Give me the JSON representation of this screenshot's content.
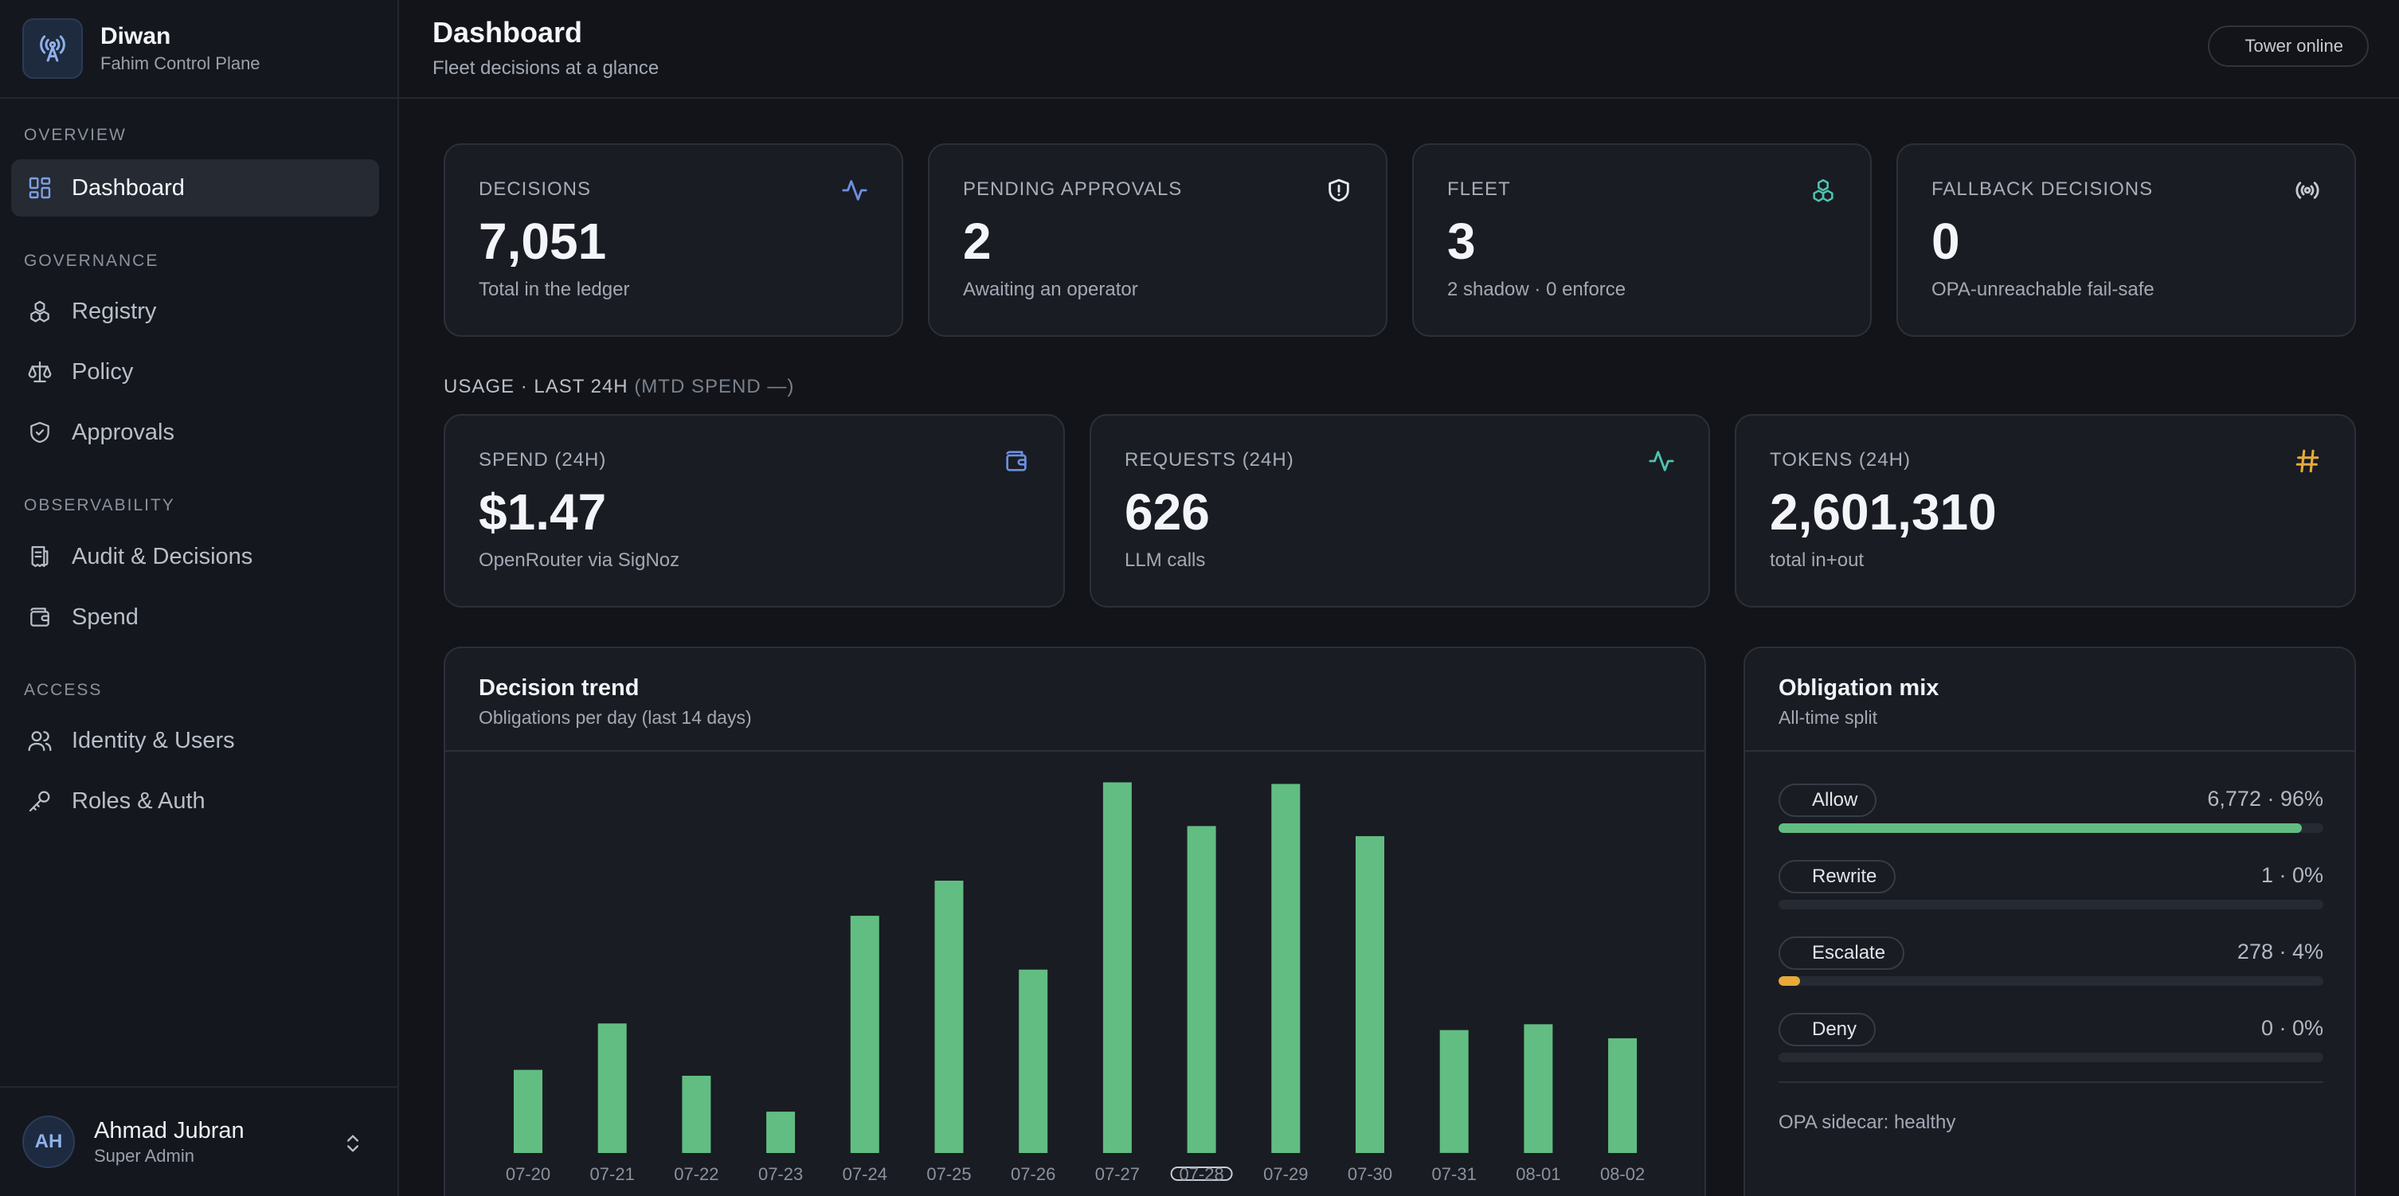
{
  "brand": {
    "name": "Diwan",
    "subtitle": "Fahim Control Plane"
  },
  "nav": {
    "sections": {
      "overview": "Overview",
      "governance": "Governance",
      "observability": "Observability",
      "access": "Access"
    },
    "items": {
      "dashboard": "Dashboard",
      "registry": "Registry",
      "policy": "Policy",
      "approvals": "Approvals",
      "audit": "Audit & Decisions",
      "spend": "Spend",
      "identity": "Identity & Users",
      "roles": "Roles & Auth"
    },
    "active": "dashboard"
  },
  "user": {
    "initials": "AH",
    "name": "Ahmad Jubran",
    "role": "Super Admin"
  },
  "header": {
    "title": "Dashboard",
    "subtitle": "Fleet decisions at a glance",
    "status": "Tower online"
  },
  "stats": [
    {
      "label": "Decisions",
      "value": "7,051",
      "sub": "Total in the ledger",
      "icon": "activity-icon",
      "color": "#6d8fe0"
    },
    {
      "label": "Pending approvals",
      "value": "2",
      "sub": "Awaiting an operator",
      "icon": "shield-icon",
      "color": "#e7e9ee"
    },
    {
      "label": "Fleet",
      "value": "3",
      "sub": "2 shadow · 0 enforce",
      "icon": "boxes-icon",
      "color": "#4fc3b0"
    },
    {
      "label": "Fallback decisions",
      "value": "0",
      "sub": "OPA-unreachable fail-safe",
      "icon": "radio-icon",
      "color": "#c6cbd3"
    }
  ],
  "usage": {
    "heading": "Usage · Last 24h",
    "heading_muted": "(MTD spend —)",
    "cards": [
      {
        "label": "Spend (24h)",
        "value": "$1.47",
        "sub": "OpenRouter via SigNoz",
        "icon": "wallet-icon",
        "color": "#6d8fe0"
      },
      {
        "label": "Requests (24h)",
        "value": "626",
        "sub": "LLM calls",
        "icon": "activity-icon",
        "color": "#4fc3b0"
      },
      {
        "label": "Tokens (24h)",
        "value": "2,601,310",
        "sub": "total in+out",
        "icon": "hash-icon",
        "color": "#e8a93a"
      }
    ]
  },
  "trend": {
    "title": "Decision trend",
    "subtitle": "Obligations per day (last 14 days)"
  },
  "chart_data": {
    "type": "bar",
    "title": "Decision trend",
    "subtitle": "Obligations per day (last 14 days)",
    "categories": [
      "07-20",
      "07-21",
      "07-22",
      "07-23",
      "07-24",
      "07-25",
      "07-26",
      "07-27",
      "07-28",
      "07-29",
      "07-30",
      "07-31",
      "08-01",
      "08-02"
    ],
    "values": [
      213,
      332,
      198,
      106,
      608,
      698,
      470,
      950,
      838,
      946,
      812,
      315,
      330,
      294
    ],
    "ylim": [
      0,
      1000
    ],
    "color": "#62bd82",
    "grid": false,
    "highlighted_category": "07-28"
  },
  "mix": {
    "title": "Obligation mix",
    "subtitle": "All-time split",
    "items": [
      {
        "label": "Allow",
        "value": "6,772 · 96%",
        "fraction": 0.96,
        "color": "#62bd82"
      },
      {
        "label": "Rewrite",
        "value": "1 · 0%",
        "fraction": 0.0,
        "color": "#6d8fe0"
      },
      {
        "label": "Escalate",
        "value": "278 · 4%",
        "fraction": 0.04,
        "color": "#e8a93a"
      },
      {
        "label": "Deny",
        "value": "0 · 0%",
        "fraction": 0.0,
        "color": "#e06060"
      }
    ],
    "footer": "OPA sidecar: healthy"
  }
}
